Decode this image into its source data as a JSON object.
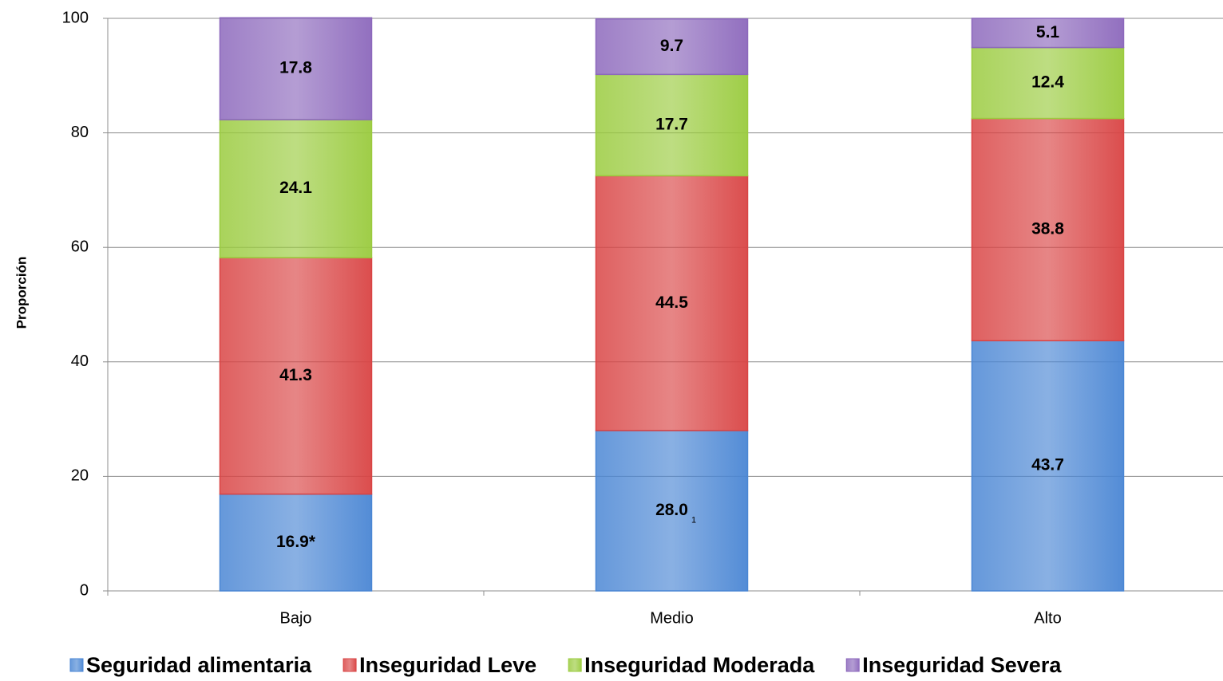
{
  "chart_data": {
    "type": "stacked_bar",
    "y_label": "Proporción",
    "categories": [
      "Bajo",
      "Medio",
      "Alto"
    ],
    "series": [
      {
        "name": "Seguridad alimentaria",
        "color": "#4a86d4",
        "values": [
          16.9,
          28.0,
          43.7
        ],
        "value_labels": [
          "16.9*",
          "28.0",
          "43.7"
        ]
      },
      {
        "name": "Inseguridad Leve",
        "color": "#d94444",
        "values": [
          41.3,
          44.5,
          38.8
        ]
      },
      {
        "name": "Inseguridad Moderada",
        "color": "#9acb3e",
        "values": [
          24.1,
          17.7,
          12.4
        ]
      },
      {
        "name": "Inseguridad Severa",
        "color": "#8c68bc",
        "values": [
          17.8,
          9.7,
          5.1
        ]
      }
    ],
    "annotations": [
      {
        "text": "1",
        "series": 0,
        "category": 1
      }
    ],
    "ylim": [
      0,
      100
    ],
    "yticks": [
      0,
      20,
      40,
      60,
      80,
      100
    ],
    "grid": true,
    "legend": "bottom"
  }
}
